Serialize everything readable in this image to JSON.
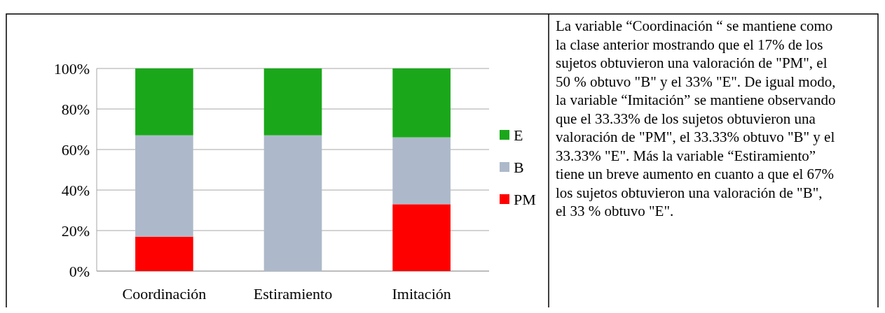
{
  "chart_data": [
    {
      "type": "bar",
      "stacked": true,
      "categories": [
        "Coordinación",
        "Estiramiento",
        "Imitación"
      ],
      "series": [
        {
          "name": "PM",
          "color": "#ff0000",
          "values": [
            17,
            0,
            33
          ]
        },
        {
          "name": "B",
          "color": "#adb9ca",
          "values": [
            50,
            67,
            33
          ]
        },
        {
          "name": "E",
          "color": "#1aa81a",
          "values": [
            33,
            33,
            34
          ]
        }
      ],
      "ylim": [
        0,
        100
      ],
      "yticks": [
        {
          "value": 0,
          "label": "0%"
        },
        {
          "value": 20,
          "label": "20%"
        },
        {
          "value": 40,
          "label": "40%"
        },
        {
          "value": 60,
          "label": "60%"
        },
        {
          "value": 80,
          "label": "80%"
        },
        {
          "value": 100,
          "label": "100%"
        }
      ],
      "grid": true,
      "legend": "right"
    },
    {
      "type": "other",
      "annotations": [
        "La variable “Coordinación “ se mantiene como la clase anterior mostrando que el 17% de los sujetos obtuvieron una valoración de \"PM\", el 50 % obtuvo \"B\" y el 33% \"E\". De igual modo, la variable “Imitación” se mantiene observando que el 33.33% de los sujetos obtuvieron una valoración de \"PM\", el 33.33% obtuvo \"B\" y el 33.33% \"E\". Más la variable “Estiramiento” tiene un breve aumento en cuanto a que el 67% los sujetos obtuvieron una valoración de \"B\", el 33 % obtuvo \"E\"."
      ]
    }
  ]
}
